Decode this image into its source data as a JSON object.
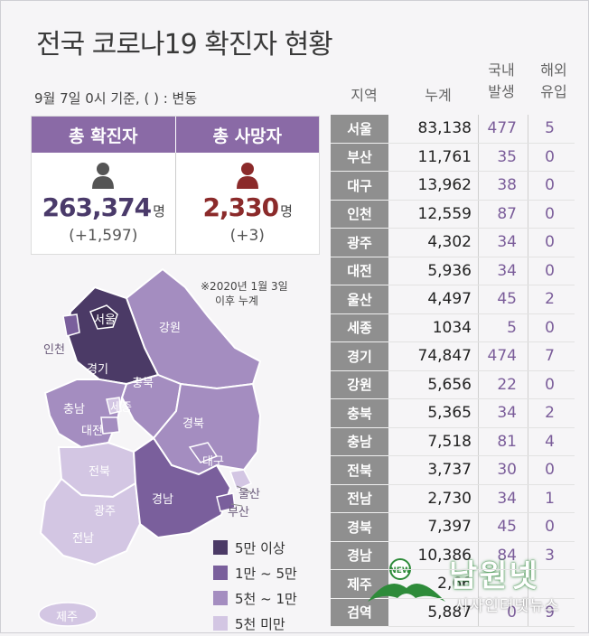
{
  "title": "전국 코로나19 확진자 현황",
  "subtitle": "9월 7일 0시 기준, ( ) : 변동",
  "summary": {
    "confirmed_label": "총 확진자",
    "deaths_label": "총 사망자",
    "confirmed_value": "263,374",
    "deaths_value": "2,330",
    "unit": "명",
    "confirmed_change": "(+1,597)",
    "deaths_change": "(+3)"
  },
  "note": [
    "※2020년 1월 3일",
    "이후 누계"
  ],
  "table": {
    "headers": {
      "region": "지역",
      "cumulative": "누계",
      "domestic": [
        "국내",
        "발생"
      ],
      "overseas": [
        "해외",
        "유입"
      ]
    },
    "rows": [
      {
        "region": "서울",
        "cumulative": "83,138",
        "domestic": "477",
        "overseas": "5"
      },
      {
        "region": "부산",
        "cumulative": "11,761",
        "domestic": "35",
        "overseas": "0"
      },
      {
        "region": "대구",
        "cumulative": "13,962",
        "domestic": "38",
        "overseas": "0"
      },
      {
        "region": "인천",
        "cumulative": "12,559",
        "domestic": "87",
        "overseas": "0"
      },
      {
        "region": "광주",
        "cumulative": "4,302",
        "domestic": "34",
        "overseas": "0"
      },
      {
        "region": "대전",
        "cumulative": "5,936",
        "domestic": "34",
        "overseas": "0"
      },
      {
        "region": "울산",
        "cumulative": "4,497",
        "domestic": "45",
        "overseas": "2"
      },
      {
        "region": "세종",
        "cumulative": "1034",
        "domestic": "5",
        "overseas": "0"
      },
      {
        "region": "경기",
        "cumulative": "74,847",
        "domestic": "474",
        "overseas": "7"
      },
      {
        "region": "강원",
        "cumulative": "5,656",
        "domestic": "22",
        "overseas": "0"
      },
      {
        "region": "충북",
        "cumulative": "5,365",
        "domestic": "34",
        "overseas": "2"
      },
      {
        "region": "충남",
        "cumulative": "7,518",
        "domestic": "81",
        "overseas": "4"
      },
      {
        "region": "전북",
        "cumulative": "3,737",
        "domestic": "30",
        "overseas": "0"
      },
      {
        "region": "전남",
        "cumulative": "2,730",
        "domestic": "34",
        "overseas": "1"
      },
      {
        "region": "경북",
        "cumulative": "7,397",
        "domestic": "45",
        "overseas": "0"
      },
      {
        "region": "경남",
        "cumulative": "10,386",
        "domestic": "84",
        "overseas": "3"
      },
      {
        "region": "제주",
        "cumulative": "2,66",
        "domestic": "",
        "overseas": ""
      },
      {
        "region": "검역",
        "cumulative": "5,887",
        "domestic": "0",
        "overseas": "9"
      }
    ]
  },
  "map_labels": {
    "seoul": "서울",
    "incheon": "인천",
    "gyeonggi": "경기",
    "gangwon": "강원",
    "chungbuk": "충북",
    "chungnam": "충남",
    "sejong": "세종",
    "daejeon": "대전",
    "gyeongbuk": "경북",
    "daegu": "대구",
    "jeonbuk": "전북",
    "gwangju": "광주",
    "jeonnam": "전남",
    "gyeongnam": "경남",
    "ulsan": "울산",
    "busan": "부산",
    "jeju": "제주"
  },
  "legend": [
    {
      "label": "5만 이상",
      "color": "#4b3a66"
    },
    {
      "label": "1만 ~ 5만",
      "color": "#7a5f9c"
    },
    {
      "label": "5천 ~ 1만",
      "color": "#a48dc0"
    },
    {
      "label": "5천 미만",
      "color": "#d3c6e3"
    }
  ],
  "watermark": {
    "logo_badge": "NEW",
    "name": "남원넷",
    "tagline": "시사인터넷뉴스"
  },
  "colors": {
    "header_purple": "#8a6aa6",
    "region_gray": "#8f8f8f",
    "purple_text": "#7b5d9a",
    "red_icon": "#8b2a2a"
  }
}
